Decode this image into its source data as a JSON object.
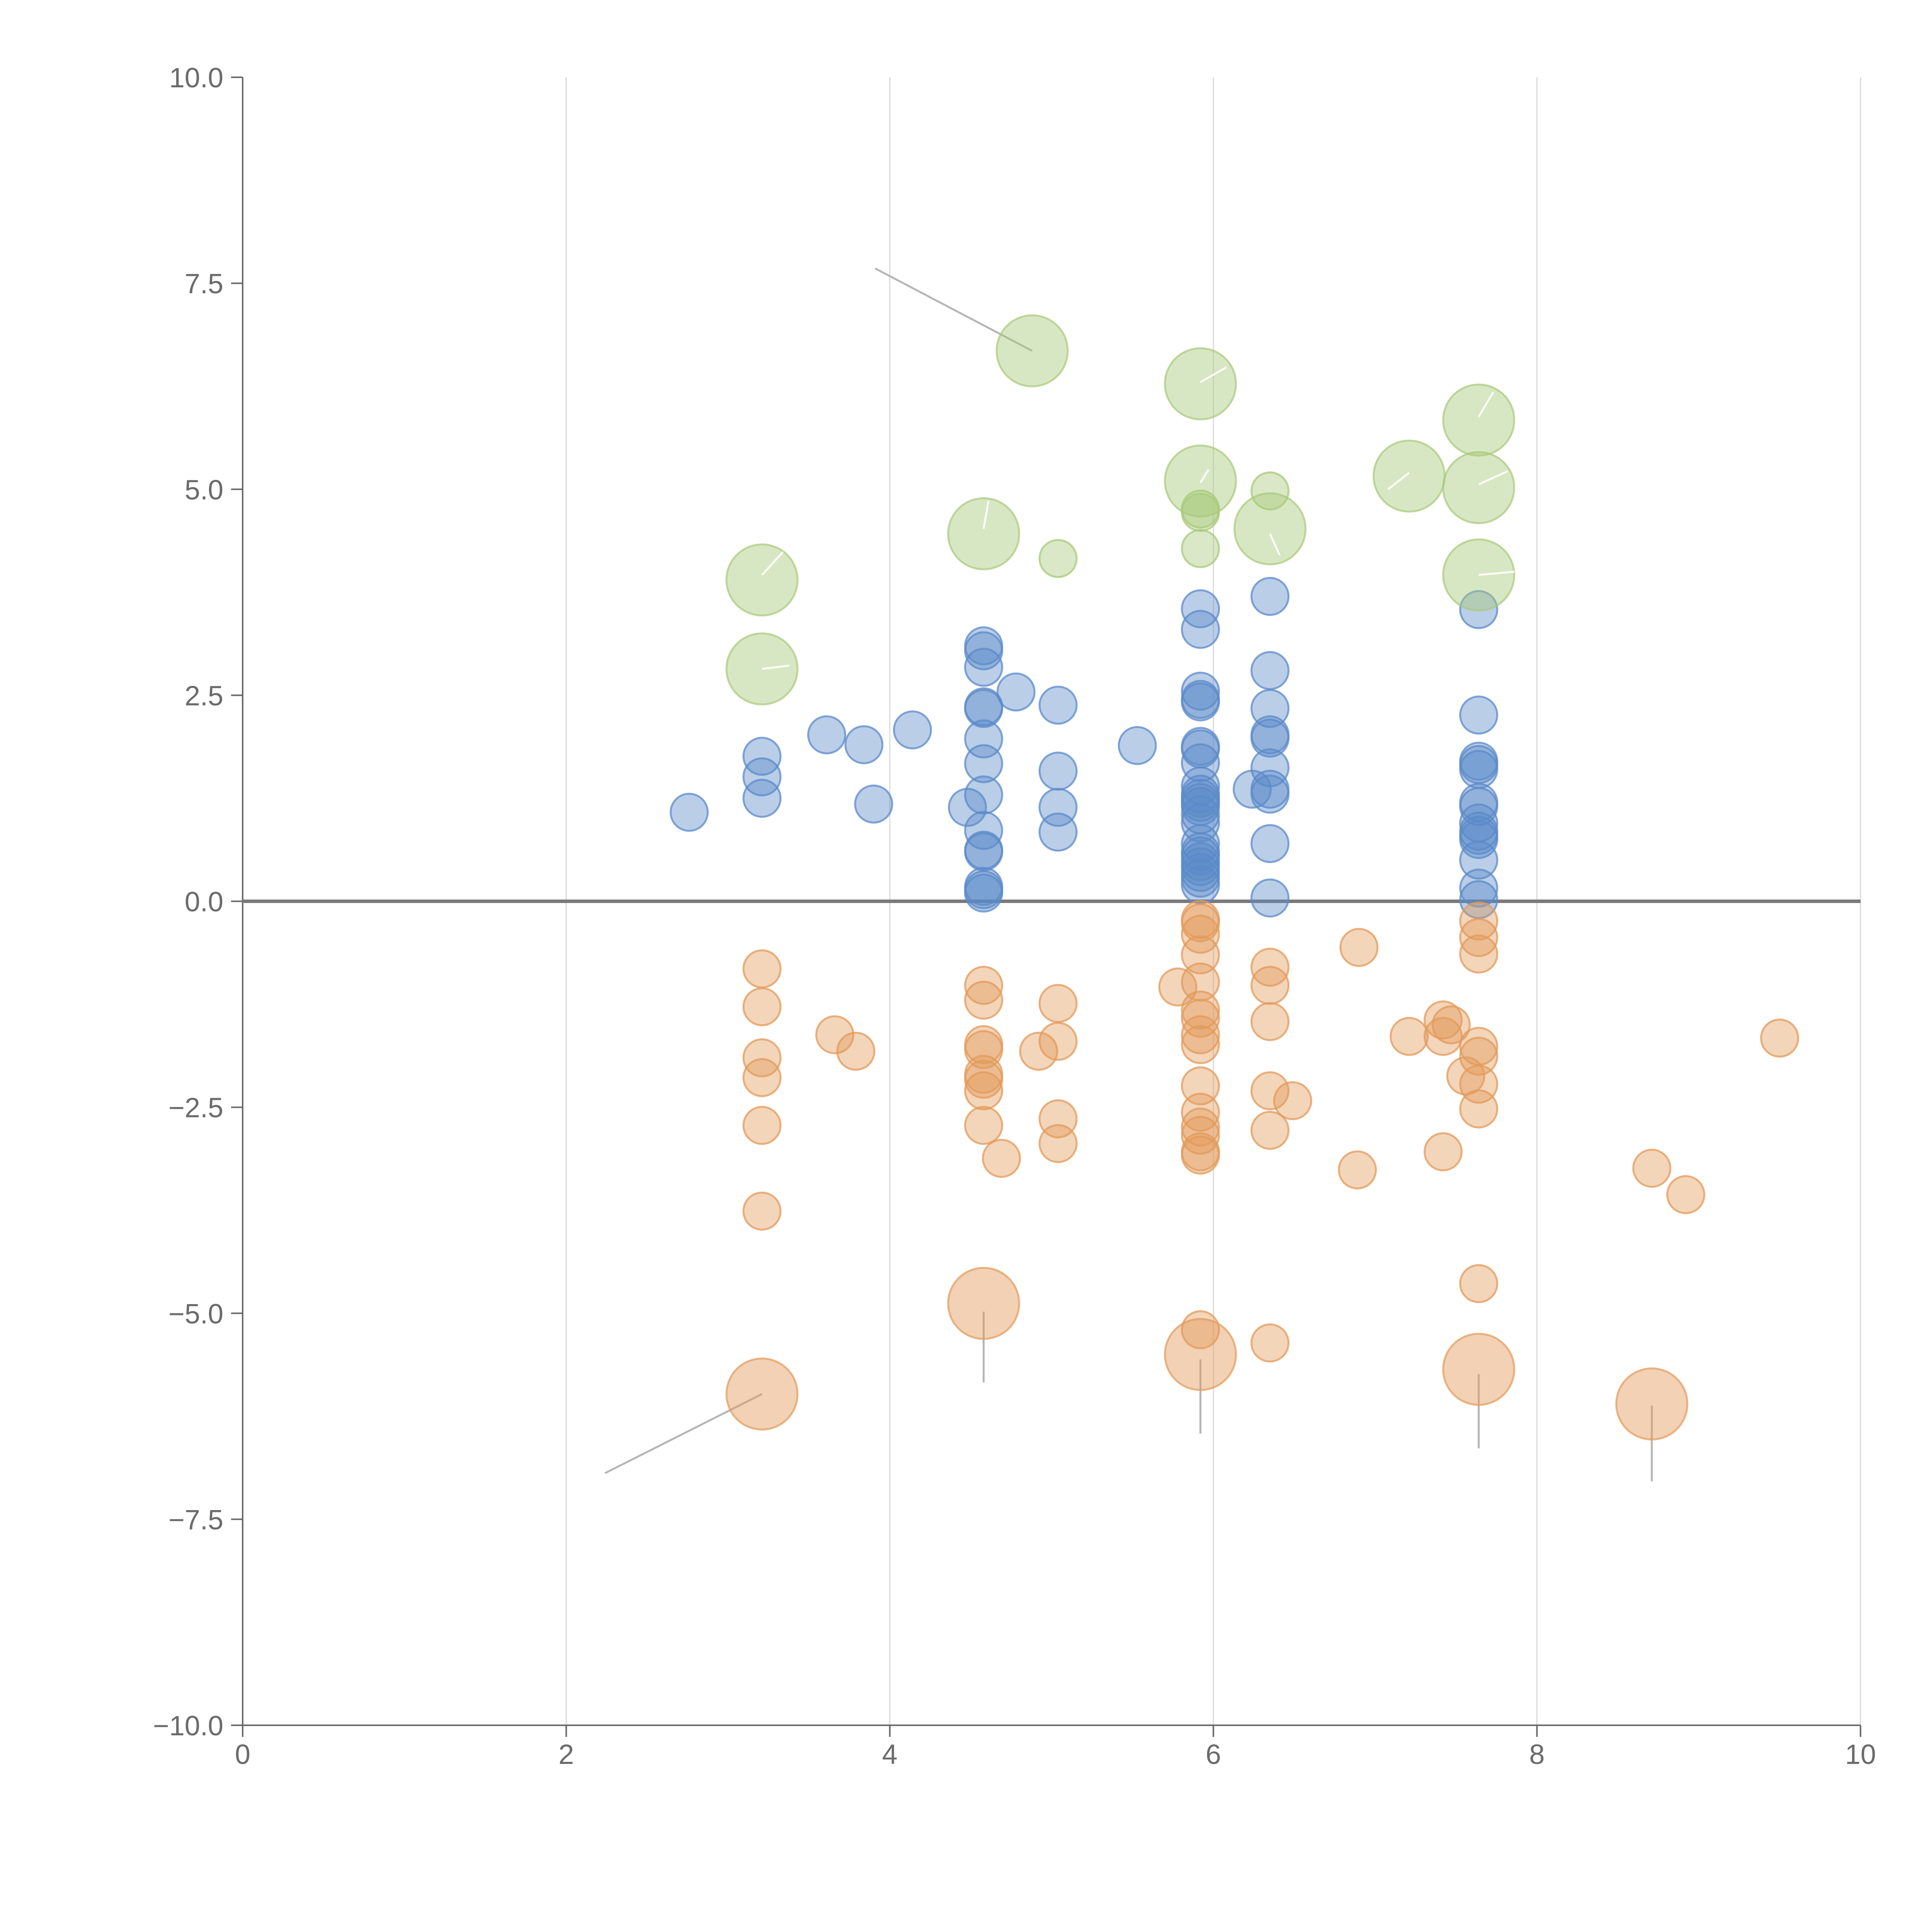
{
  "chart_data": {
    "type": "scatter",
    "title": "",
    "xlabel": "",
    "ylabel": "",
    "xlim": [
      0,
      10
    ],
    "ylim": [
      -10,
      10
    ],
    "x_ticks": [
      "0",
      "2",
      "4",
      "6",
      "8",
      "10"
    ],
    "y_ticks": [
      "10.0",
      "7.5",
      "5.0",
      "2.5",
      "0.0",
      "−2.5",
      "−5.0",
      "−7.5",
      "−10.0"
    ],
    "x_tick_values": [
      0,
      2,
      4,
      6,
      8,
      10
    ],
    "y_tick_values": [
      10,
      7.5,
      5,
      2.5,
      0,
      -2.5,
      -5,
      -7.5,
      -10
    ],
    "grid": "vertical",
    "zero_line": true,
    "colors": {
      "positive": "#5b8ac9",
      "negative": "#e39a5a",
      "highlight": "#a8c97a",
      "axis": "#6b6b6b",
      "grid": "#d9d9d9"
    },
    "series": [
      {
        "key": "positive",
        "color": "#5b8ac9",
        "points": [
          [
            2.76,
            1.08
          ],
          [
            3.21,
            1.76
          ],
          [
            3.21,
            1.51
          ],
          [
            3.21,
            1.25
          ],
          [
            3.61,
            2.02
          ],
          [
            3.84,
            1.9
          ],
          [
            3.9,
            1.18
          ],
          [
            4.14,
            2.08
          ],
          [
            4.48,
            1.14
          ],
          [
            4.58,
            3.1
          ],
          [
            4.58,
            3.04
          ],
          [
            4.58,
            2.84
          ],
          [
            4.58,
            2.36
          ],
          [
            4.58,
            2.34
          ],
          [
            4.58,
            1.97
          ],
          [
            4.58,
            1.67
          ],
          [
            4.58,
            1.29
          ],
          [
            4.58,
            0.86
          ],
          [
            4.58,
            0.62
          ],
          [
            4.58,
            0.6
          ],
          [
            4.58,
            0.18
          ],
          [
            4.58,
            0.14
          ],
          [
            4.58,
            0.1
          ],
          [
            4.78,
            2.54
          ],
          [
            5.04,
            2.38
          ],
          [
            5.04,
            1.58
          ],
          [
            5.04,
            1.14
          ],
          [
            5.04,
            0.84
          ],
          [
            5.53,
            1.89
          ],
          [
            5.92,
            3.55
          ],
          [
            5.92,
            3.3
          ],
          [
            5.92,
            2.55
          ],
          [
            5.92,
            2.45
          ],
          [
            5.92,
            2.42
          ],
          [
            5.92,
            1.88
          ],
          [
            5.92,
            1.85
          ],
          [
            5.92,
            1.68
          ],
          [
            5.92,
            1.4
          ],
          [
            5.92,
            1.3
          ],
          [
            5.92,
            1.25
          ],
          [
            5.92,
            1.2
          ],
          [
            5.92,
            1.15
          ],
          [
            5.92,
            1.05
          ],
          [
            5.92,
            0.95
          ],
          [
            5.92,
            0.7
          ],
          [
            5.92,
            0.6
          ],
          [
            5.92,
            0.55
          ],
          [
            5.92,
            0.48
          ],
          [
            5.92,
            0.42
          ],
          [
            5.92,
            0.35
          ],
          [
            5.92,
            0.28
          ],
          [
            5.92,
            0.2
          ],
          [
            6.24,
            1.36
          ],
          [
            6.35,
            3.7
          ],
          [
            6.35,
            2.8
          ],
          [
            6.35,
            2.34
          ],
          [
            6.35,
            2.02
          ],
          [
            6.35,
            1.98
          ],
          [
            6.35,
            1.62
          ],
          [
            6.35,
            1.36
          ],
          [
            6.35,
            1.3
          ],
          [
            6.35,
            0.7
          ],
          [
            6.35,
            0.04
          ],
          [
            7.64,
            3.54
          ],
          [
            7.64,
            2.26
          ],
          [
            7.64,
            1.7
          ],
          [
            7.64,
            1.66
          ],
          [
            7.64,
            1.6
          ],
          [
            7.64,
            1.2
          ],
          [
            7.64,
            1.15
          ],
          [
            7.64,
            0.95
          ],
          [
            7.64,
            0.85
          ],
          [
            7.64,
            0.8
          ],
          [
            7.64,
            0.75
          ],
          [
            7.64,
            0.5
          ],
          [
            7.64,
            0.16
          ],
          [
            7.64,
            0.02
          ]
        ]
      },
      {
        "key": "negative",
        "color": "#e39a5a",
        "points": [
          [
            3.21,
            -0.82
          ],
          [
            3.21,
            -1.28
          ],
          [
            3.21,
            -1.9
          ],
          [
            3.21,
            -2.14
          ],
          [
            3.21,
            -2.72
          ],
          [
            3.21,
            -3.76
          ],
          [
            3.66,
            -1.62
          ],
          [
            3.79,
            -1.82
          ],
          [
            4.58,
            -1.02
          ],
          [
            4.58,
            -1.2
          ],
          [
            4.58,
            -1.74
          ],
          [
            4.58,
            -1.8
          ],
          [
            4.58,
            -2.1
          ],
          [
            4.58,
            -2.16
          ],
          [
            4.58,
            -2.3
          ],
          [
            4.58,
            -2.72
          ],
          [
            4.69,
            -3.12
          ],
          [
            4.92,
            -1.82
          ],
          [
            5.04,
            -1.24
          ],
          [
            5.04,
            -1.7
          ],
          [
            5.04,
            -2.64
          ],
          [
            5.04,
            -2.94
          ],
          [
            5.78,
            -1.04
          ],
          [
            5.92,
            -0.22
          ],
          [
            5.92,
            -0.26
          ],
          [
            5.92,
            -0.4
          ],
          [
            5.92,
            -0.65
          ],
          [
            5.92,
            -0.98
          ],
          [
            5.92,
            -1.32
          ],
          [
            5.92,
            -1.42
          ],
          [
            5.92,
            -1.62
          ],
          [
            5.92,
            -1.74
          ],
          [
            5.92,
            -2.24
          ],
          [
            5.92,
            -2.56
          ],
          [
            5.92,
            -2.74
          ],
          [
            5.92,
            -2.84
          ],
          [
            5.92,
            -3.04
          ],
          [
            5.92,
            -3.08
          ],
          [
            5.92,
            -5.2
          ],
          [
            6.35,
            -0.8
          ],
          [
            6.35,
            -1.02
          ],
          [
            6.35,
            -1.46
          ],
          [
            6.35,
            -2.3
          ],
          [
            6.35,
            -2.78
          ],
          [
            6.35,
            -5.36
          ],
          [
            6.49,
            -2.42
          ],
          [
            6.9,
            -0.56
          ],
          [
            6.89,
            -3.26
          ],
          [
            7.21,
            -1.64
          ],
          [
            7.42,
            -1.44
          ],
          [
            7.42,
            -1.64
          ],
          [
            7.42,
            -3.04
          ],
          [
            7.47,
            -1.5
          ],
          [
            7.56,
            -2.12
          ],
          [
            7.64,
            -0.24
          ],
          [
            7.64,
            -0.44
          ],
          [
            7.64,
            -0.64
          ],
          [
            7.64,
            -1.76
          ],
          [
            7.64,
            -1.88
          ],
          [
            7.64,
            -2.22
          ],
          [
            7.64,
            -2.52
          ],
          [
            7.64,
            -4.64
          ],
          [
            8.71,
            -3.24
          ],
          [
            8.92,
            -3.56
          ],
          [
            9.5,
            -1.66
          ]
        ]
      },
      {
        "key": "highlight-green",
        "color": "#a8c97a",
        "points": [
          [
            5.04,
            4.16
          ],
          [
            5.92,
            4.76
          ],
          [
            5.92,
            4.72
          ],
          [
            5.92,
            4.28
          ],
          [
            6.35,
            4.98
          ]
        ]
      }
    ],
    "large_bubbles": [
      {
        "x": 3.21,
        "y": 3.9,
        "color": "#a8c97a",
        "label": ""
      },
      {
        "x": 3.21,
        "y": 2.82,
        "color": "#a8c97a",
        "label": ""
      },
      {
        "x": 4.58,
        "y": 4.46,
        "color": "#a8c97a",
        "label": ""
      },
      {
        "x": 4.88,
        "y": 6.68,
        "color": "#a8c97a",
        "label": ""
      },
      {
        "x": 5.92,
        "y": 6.28,
        "color": "#a8c97a",
        "label": ""
      },
      {
        "x": 5.92,
        "y": 5.1,
        "color": "#a8c97a",
        "label": ""
      },
      {
        "x": 6.35,
        "y": 4.52,
        "color": "#a8c97a",
        "label": ""
      },
      {
        "x": 7.21,
        "y": 5.16,
        "color": "#a8c97a",
        "label": ""
      },
      {
        "x": 7.64,
        "y": 5.84,
        "color": "#a8c97a",
        "label": ""
      },
      {
        "x": 7.64,
        "y": 5.02,
        "color": "#a8c97a",
        "label": ""
      },
      {
        "x": 7.64,
        "y": 3.96,
        "color": "#a8c97a",
        "label": ""
      },
      {
        "x": 3.21,
        "y": -5.98,
        "color": "#e39a5a",
        "label": ""
      },
      {
        "x": 4.58,
        "y": -4.88,
        "color": "#e39a5a",
        "label": ""
      },
      {
        "x": 5.92,
        "y": -5.5,
        "color": "#e39a5a",
        "label": ""
      },
      {
        "x": 7.64,
        "y": -5.68,
        "color": "#e39a5a",
        "label": ""
      },
      {
        "x": 8.71,
        "y": -6.1,
        "color": "#e39a5a",
        "label": ""
      }
    ],
    "leader_lines": [
      {
        "x1": 4.88,
        "y1": 6.68,
        "x2": 3.91,
        "y2": 7.68,
        "style": "grey"
      },
      {
        "x1": 3.21,
        "y1": -5.98,
        "x2": 2.24,
        "y2": -6.94,
        "style": "grey"
      },
      {
        "x1": 4.58,
        "y1": -4.98,
        "x2": 4.58,
        "y2": -5.84,
        "style": "grey"
      },
      {
        "x1": 5.92,
        "y1": -5.56,
        "x2": 5.92,
        "y2": -6.46,
        "style": "grey"
      },
      {
        "x1": 7.64,
        "y1": -5.74,
        "x2": 7.64,
        "y2": -6.64,
        "style": "grey"
      },
      {
        "x1": 8.71,
        "y1": -6.12,
        "x2": 8.71,
        "y2": -7.04,
        "style": "grey"
      },
      {
        "x1": 3.21,
        "y1": 3.96,
        "x2": 3.34,
        "y2": 4.24,
        "style": "light"
      },
      {
        "x1": 3.21,
        "y1": 2.82,
        "x2": 3.38,
        "y2": 2.86,
        "style": "light"
      },
      {
        "x1": 4.58,
        "y1": 4.52,
        "x2": 4.61,
        "y2": 4.86,
        "style": "light"
      },
      {
        "x1": 5.92,
        "y1": 6.3,
        "x2": 6.08,
        "y2": 6.48,
        "style": "light"
      },
      {
        "x1": 5.92,
        "y1": 5.08,
        "x2": 5.97,
        "y2": 5.24,
        "style": "light"
      },
      {
        "x1": 6.35,
        "y1": 4.46,
        "x2": 6.41,
        "y2": 4.2,
        "style": "light"
      },
      {
        "x1": 7.21,
        "y1": 5.2,
        "x2": 7.08,
        "y2": 5.0,
        "style": "light"
      },
      {
        "x1": 7.64,
        "y1": 5.88,
        "x2": 7.73,
        "y2": 6.18,
        "style": "light"
      },
      {
        "x1": 7.64,
        "y1": 5.06,
        "x2": 7.82,
        "y2": 5.22,
        "style": "light"
      },
      {
        "x1": 7.64,
        "y1": 3.96,
        "x2": 7.86,
        "y2": 4.0,
        "style": "light"
      }
    ]
  }
}
